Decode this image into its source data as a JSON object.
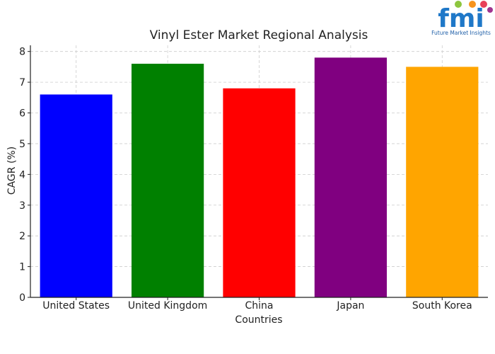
{
  "logo": {
    "mark": "fmi",
    "tagline": "Future Market Insights",
    "colors": {
      "mark": "#1f78c8",
      "dots": [
        "#8dc63f",
        "#f7941d",
        "#e8415a",
        "#a0358f"
      ]
    }
  },
  "chart_data": {
    "type": "bar",
    "title": "Vinyl Ester Market Regional Analysis",
    "xlabel": "Countries",
    "ylabel": "CAGR (%)",
    "categories": [
      "United States",
      "United Kingdom",
      "China",
      "Japan",
      "South Korea"
    ],
    "values": [
      6.6,
      7.6,
      6.8,
      7.8,
      7.5
    ],
    "colors": [
      "#0000ff",
      "#008000",
      "#ff0000",
      "#800080",
      "#ffa500"
    ],
    "ylim": [
      0,
      8.2
    ],
    "yticks": [
      "0",
      "1",
      "2",
      "3",
      "4",
      "5",
      "6",
      "7",
      "8"
    ],
    "grid": true,
    "legend": "none"
  }
}
